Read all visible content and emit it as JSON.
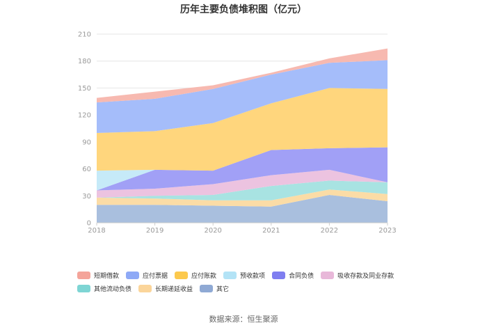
{
  "chart_data": {
    "type": "area",
    "stacked": true,
    "title": "历年主要负债堆积图（亿元）",
    "source": "数据来源：恒生聚源",
    "x": [
      "2018",
      "2019",
      "2020",
      "2021",
      "2022",
      "2023"
    ],
    "ylim": [
      0,
      210
    ],
    "yticks": [
      0,
      30,
      60,
      90,
      120,
      150,
      180,
      210
    ],
    "grid": true,
    "legend_position": "bottom",
    "series": [
      {
        "name": "其它",
        "color": "#a9bfde",
        "values": [
          20,
          20,
          19,
          18,
          31,
          24
        ]
      },
      {
        "name": "长期递延收益",
        "color": "#fbdca6",
        "values": [
          8,
          7,
          6,
          7,
          6,
          8
        ]
      },
      {
        "name": "其他流动负债",
        "color": "#a8e3e2",
        "values": [
          0,
          3,
          6,
          16,
          10,
          13
        ]
      },
      {
        "name": "吸收存款及同业存款",
        "color": "#ecc3e0",
        "values": [
          8,
          8,
          12,
          12,
          12,
          0
        ]
      },
      {
        "name": "合同负债",
        "color": "#a1a0f6",
        "values": [
          0,
          21,
          15,
          28,
          24,
          39
        ]
      },
      {
        "name": "预收款项",
        "color": "#c6eaf8",
        "values": [
          22,
          0,
          0,
          0,
          0,
          0
        ]
      },
      {
        "name": "应付账款",
        "color": "#ffd67d",
        "values": [
          42,
          43,
          53,
          52,
          67,
          65
        ]
      },
      {
        "name": "应付票据",
        "color": "#a5bdfa",
        "values": [
          34,
          36,
          38,
          32,
          28,
          32
        ]
      },
      {
        "name": "短期借款",
        "color": "#f7b9b0",
        "values": [
          5,
          8,
          4,
          2,
          5,
          13
        ]
      }
    ],
    "legend_order": [
      "短期借款",
      "应付票据",
      "应付账款",
      "预收款项",
      "合同负债",
      "吸收存款及同业存款",
      "其他流动负债",
      "长期递延收益",
      "其它"
    ],
    "legend_colors": {
      "短期借款": "#f4a49a",
      "应付票据": "#8ea9f6",
      "应付账款": "#fcc94d",
      "预收款项": "#b3e3f6",
      "合同负债": "#7f7ef0",
      "吸收存款及同业存款": "#e8b8d9",
      "其他流动负债": "#7ed5d4",
      "长期递延收益": "#fbd59a",
      "其它": "#8fa9d4"
    }
  }
}
